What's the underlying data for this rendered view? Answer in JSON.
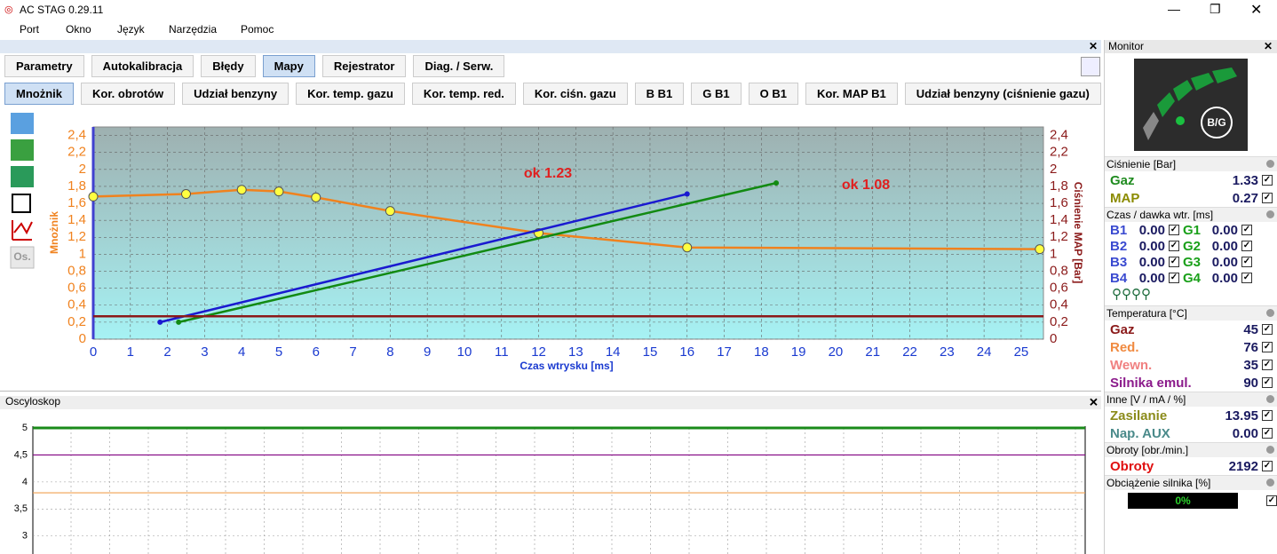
{
  "window": {
    "title": "AC STAG 0.29.11"
  },
  "menu": [
    "Port",
    "Okno",
    "Język",
    "Narzędzia",
    "Pomoc"
  ],
  "tabs": [
    "Parametry",
    "Autokalibracja",
    "Błędy",
    "Mapy",
    "Rejestrator",
    "Diag. / Serw."
  ],
  "subtabs": [
    "Mnożnik",
    "Kor. obrotów",
    "Udział benzyny",
    "Kor. temp. gazu",
    "Kor. temp. red.",
    "Kor. ciśn. gazu",
    "B B1",
    "G B1",
    "O B1",
    "Kor. MAP B1",
    "Udział benzyny (ciśnienie gazu)"
  ],
  "side_button": "Os.",
  "oscilloscope_title": "Oscyloskop",
  "chart_data": [
    {
      "type": "line",
      "x_label": "Czas wtrysku [ms]",
      "y_label": "Mnożnik",
      "y2_label": "Ciśnienie MAP [Bar]",
      "xlim": [
        0,
        25.6
      ],
      "xticks": [
        0,
        1,
        2,
        3,
        4,
        5,
        6,
        7,
        8,
        9,
        10,
        11,
        12,
        13,
        14,
        15,
        16,
        17,
        18,
        19,
        20,
        21,
        22,
        23,
        24,
        25
      ],
      "ylim": [
        0,
        2.5
      ],
      "yticks": [
        0,
        {
          "value": 0.2,
          "label": "0,2"
        },
        {
          "value": 0.4,
          "label": "0,4"
        },
        {
          "value": 0.6,
          "label": "0,6"
        },
        {
          "value": 0.8,
          "label": "0,8"
        },
        1,
        {
          "value": 1.2,
          "label": "1,2"
        },
        {
          "value": 1.4,
          "label": "1,4"
        },
        {
          "value": 1.6,
          "label": "1,6"
        },
        {
          "value": 1.8,
          "label": "1,8"
        },
        2,
        {
          "value": 2.2,
          "label": "2,2"
        },
        {
          "value": 2.4,
          "label": "2,4"
        }
      ],
      "y2lim": [
        0,
        2.5
      ],
      "y2ticks": [
        0,
        {
          "value": 0.2,
          "label": "0,2"
        },
        {
          "value": 0.4,
          "label": "0,4"
        },
        {
          "value": 0.6,
          "label": "0,6"
        },
        {
          "value": 0.8,
          "label": "0,8"
        },
        1,
        {
          "value": 1.2,
          "label": "1,2"
        },
        {
          "value": 1.4,
          "label": "1,4"
        },
        {
          "value": 1.6,
          "label": "1,6"
        },
        {
          "value": 1.8,
          "label": "1,8"
        },
        2,
        {
          "value": 2.2,
          "label": "2,2"
        },
        {
          "value": 2.4,
          "label": "2,4"
        }
      ],
      "grid": true,
      "series": [
        {
          "color": "#f0821e",
          "x": [
            0,
            2.5,
            4,
            5,
            6,
            8,
            12,
            16,
            25.5
          ],
          "values": [
            1.68,
            1.71,
            1.76,
            1.74,
            1.67,
            1.51,
            1.25,
            1.08,
            1.06
          ]
        },
        {
          "color": "#1a1ad0",
          "x": [
            1.8,
            16
          ],
          "values": [
            0.2,
            1.71
          ]
        },
        {
          "color": "#128a12",
          "x": [
            2.3,
            18.4
          ],
          "values": [
            0.2,
            1.84
          ]
        },
        {
          "color": "#8b1a1a",
          "axis": "y2",
          "x": [
            0,
            25.6
          ],
          "values": [
            0.27,
            0.27
          ]
        }
      ],
      "annotations": [
        "ok 1.23",
        "ok 1.08"
      ]
    },
    {
      "type": "line",
      "ylim": [
        2.7,
        5
      ],
      "yticks": [
        5,
        {
          "value": 4.5,
          "label": "4,5"
        },
        4,
        {
          "value": 3.5,
          "label": "3,5"
        },
        3
      ],
      "series": [
        {
          "color": "#1a8a1a",
          "values": [
            5,
            5
          ]
        },
        {
          "color": "#800080",
          "values": [
            4.5,
            4.5
          ]
        },
        {
          "color": "#f0a050",
          "values": [
            3.8,
            3.8
          ]
        }
      ]
    }
  ],
  "monitor": {
    "title": "Monitor",
    "gauge_label": "B/G",
    "sections": [
      {
        "title": "Ciśnienie [Bar]",
        "rows": [
          {
            "label": "Gaz",
            "value": "1.33",
            "color": "#1f8b1f"
          },
          {
            "label": "MAP",
            "value": "0.27",
            "color": "#8b8b00"
          }
        ]
      },
      {
        "title": "Czas / dawka wtr. [ms]",
        "rows": [
          {
            "label": "B1",
            "value": "0.00",
            "color": "#3a4ad0"
          },
          {
            "label": "G1",
            "value": "0.00",
            "color": "#1aa01a"
          },
          {
            "label": "B2",
            "value": "0.00",
            "color": "#3a4ad0"
          },
          {
            "label": "G2",
            "value": "0.00",
            "color": "#1aa01a"
          },
          {
            "label": "B3",
            "value": "0.00",
            "color": "#3a4ad0"
          },
          {
            "label": "G3",
            "value": "0.00",
            "color": "#1aa01a"
          },
          {
            "label": "B4",
            "value": "0.00",
            "color": "#3a4ad0"
          },
          {
            "label": "G4",
            "value": "0.00",
            "color": "#1aa01a"
          }
        ]
      },
      {
        "title": "Temperatura [°C]",
        "rows": [
          {
            "label": "Gaz",
            "value": "45",
            "color": "#8b1a1a"
          },
          {
            "label": "Red.",
            "value": "76",
            "color": "#f08a40"
          },
          {
            "label": "Wewn.",
            "value": "35",
            "color": "#f08080"
          },
          {
            "label": "Silnika emul.",
            "value": "90",
            "color": "#8b1a8b"
          }
        ]
      },
      {
        "title": "Inne [V / mA / %]",
        "rows": [
          {
            "label": "Zasilanie",
            "value": "13.95",
            "color": "#8b8b1a"
          },
          {
            "label": "Nap. AUX",
            "value": "0.00",
            "color": "#4a8a8a"
          }
        ]
      },
      {
        "title": "Obroty [obr./min.]",
        "rows": [
          {
            "label": "Obroty",
            "value": "2192",
            "color": "#e01010"
          }
        ]
      },
      {
        "title": "Obciążenie silnika [%]",
        "value": "0%"
      }
    ]
  }
}
